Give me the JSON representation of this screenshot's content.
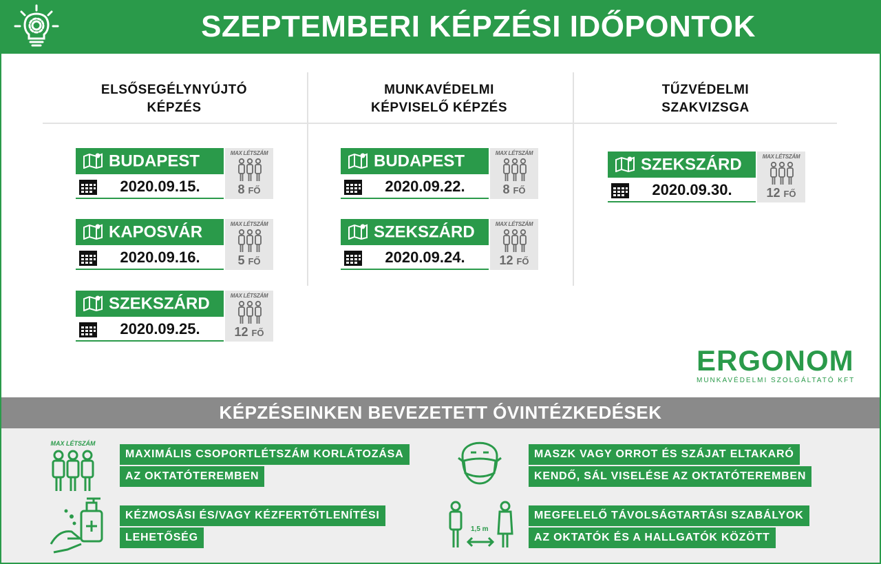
{
  "header": {
    "title": "SZEPTEMBERI KÉPZÉSI IDŐPONTOK",
    "icon": "lightbulb-gear-icon"
  },
  "columns": [
    {
      "title_line1": "ELSŐSEGÉLYNYÚJTÓ",
      "title_line2": "KÉPZÉS",
      "sessions": [
        {
          "city": "BUDAPEST",
          "date": "2020.09.15.",
          "max_label": "MAX LÉTSZÁM",
          "count": "8",
          "unit": "FŐ"
        },
        {
          "city": "KAPOSVÁR",
          "date": "2020.09.16.",
          "max_label": "MAX LÉTSZÁM",
          "count": "5",
          "unit": "FŐ"
        },
        {
          "city": "SZEKSZÁRD",
          "date": "2020.09.25.",
          "max_label": "MAX LÉTSZÁM",
          "count": "12",
          "unit": "FŐ"
        }
      ]
    },
    {
      "title_line1": "MUNKAVÉDELMI",
      "title_line2": "KÉPVISELŐ KÉPZÉS",
      "sessions": [
        {
          "city": "BUDAPEST",
          "date": "2020.09.22.",
          "max_label": "MAX LÉTSZÁM",
          "count": "8",
          "unit": "FŐ"
        },
        {
          "city": "SZEKSZÁRD",
          "date": "2020.09.24.",
          "max_label": "MAX LÉTSZÁM",
          "count": "12",
          "unit": "FŐ"
        }
      ]
    },
    {
      "title_line1": "TŰZVÉDELMI",
      "title_line2": "SZAKVIZSGA",
      "sessions": [
        {
          "city": "SZEKSZÁRD",
          "date": "2020.09.30.",
          "max_label": "MAX LÉTSZÁM",
          "count": "12",
          "unit": "FŐ"
        }
      ]
    }
  ],
  "logo": {
    "name": "ERGONOM",
    "subtitle": "MUNKAVÉDELMI SZOLGÁLTATÓ KFT"
  },
  "measures": {
    "title": "KÉPZÉSEINKEN BEVEZETETT ÓVINTÉZKEDÉSEK",
    "items": [
      {
        "icon": "max-headcount-icon",
        "icon_label": "MAX LÉTSZÁM",
        "line1": "MAXIMÁLIS CSOPORTLÉTSZÁM KORLÁTOZÁSA",
        "line2": "AZ OKTATÓTEREMBEN"
      },
      {
        "icon": "face-mask-icon",
        "line1": "MASZK VAGY ORROT ÉS SZÁJAT ELTAKARÓ",
        "line2": "KENDŐ, SÁL VISELÉSE AZ OKTATÓTEREMBEN"
      },
      {
        "icon": "hand-sanitizer-icon",
        "line1": "KÉZMOSÁSI ÉS/VAGY KÉZFERTŐTLENÍTÉSI",
        "line2": "LEHETŐSÉG"
      },
      {
        "icon": "social-distance-icon",
        "icon_label": "1,5 m",
        "line1": "MEGFELELŐ TÁVOLSÁGTARTÁSI SZABÁLYOK",
        "line2": "AZ OKTATÓK ÉS A HALLGATÓK KÖZÖTT"
      }
    ]
  },
  "colors": {
    "brand_green": "#2a9a4a",
    "grey_bar": "#8a8a8a",
    "light_bg": "#eeeeee"
  }
}
